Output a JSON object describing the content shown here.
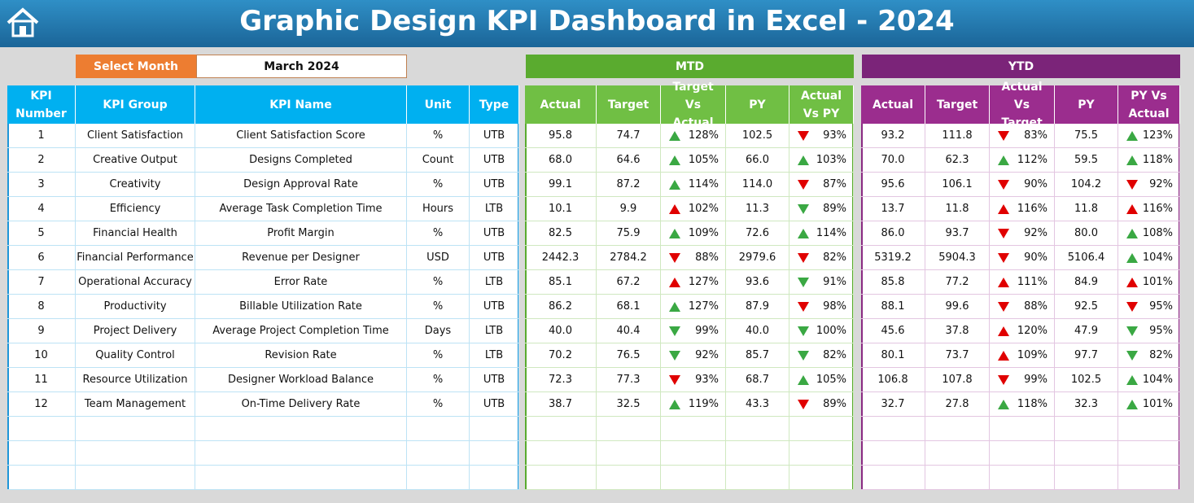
{
  "header": {
    "title": "Graphic Design KPI Dashboard in Excel - 2024"
  },
  "filter": {
    "label": "Select Month",
    "value": "March 2024"
  },
  "sections": {
    "mtd": "MTD",
    "ytd": "YTD"
  },
  "table": {
    "columns": [
      "KPI Number",
      "KPI Group",
      "KPI Name",
      "Unit",
      "Type",
      "Actual",
      "Target",
      "Target Vs Actual",
      "PY",
      "Actual Vs PY",
      "Actual",
      "Target",
      "Actual Vs Target",
      "PY",
      "PY Vs Actual"
    ],
    "rows": [
      [
        "1",
        "Client Satisfaction",
        "Client Satisfaction Score",
        "%",
        "UTB",
        "95.8",
        "74.7",
        "128%",
        "102.5",
        "93%",
        "93.2",
        "111.8",
        "83%",
        "75.5",
        "123%"
      ],
      [
        "2",
        "Creative Output",
        "Designs Completed",
        "Count",
        "UTB",
        "68.0",
        "64.6",
        "105%",
        "66.0",
        "103%",
        "70.0",
        "62.3",
        "112%",
        "59.5",
        "118%"
      ],
      [
        "3",
        "Creativity",
        "Design Approval Rate",
        "%",
        "UTB",
        "99.1",
        "87.2",
        "114%",
        "114.0",
        "87%",
        "95.6",
        "106.1",
        "90%",
        "104.2",
        "92%"
      ],
      [
        "4",
        "Efficiency",
        "Average Task Completion Time",
        "Hours",
        "LTB",
        "10.1",
        "9.9",
        "102%",
        "11.3",
        "89%",
        "13.7",
        "11.8",
        "116%",
        "11.8",
        "116%"
      ],
      [
        "5",
        "Financial Health",
        "Profit Margin",
        "%",
        "UTB",
        "82.5",
        "75.9",
        "109%",
        "72.6",
        "114%",
        "86.0",
        "93.7",
        "92%",
        "80.0",
        "108%"
      ],
      [
        "6",
        "Financial Performance",
        "Revenue per Designer",
        "USD",
        "UTB",
        "2442.3",
        "2784.2",
        "88%",
        "2979.6",
        "82%",
        "5319.2",
        "5904.3",
        "90%",
        "5106.4",
        "104%"
      ],
      [
        "7",
        "Operational Accuracy",
        "Error Rate",
        "%",
        "LTB",
        "85.1",
        "67.2",
        "127%",
        "93.6",
        "91%",
        "85.8",
        "77.2",
        "111%",
        "84.9",
        "101%"
      ],
      [
        "8",
        "Productivity",
        "Billable Utilization Rate",
        "%",
        "UTB",
        "86.2",
        "68.1",
        "127%",
        "87.9",
        "98%",
        "88.1",
        "99.6",
        "88%",
        "92.5",
        "95%"
      ],
      [
        "9",
        "Project Delivery",
        "Average Project Completion Time",
        "Days",
        "LTB",
        "40.0",
        "40.4",
        "99%",
        "40.0",
        "100%",
        "45.6",
        "37.8",
        "120%",
        "47.9",
        "95%"
      ],
      [
        "10",
        "Quality Control",
        "Revision Rate",
        "%",
        "LTB",
        "70.2",
        "76.5",
        "92%",
        "85.7",
        "82%",
        "80.1",
        "73.7",
        "109%",
        "97.7",
        "82%"
      ],
      [
        "11",
        "Resource Utilization",
        "Designer Workload Balance",
        "%",
        "UTB",
        "72.3",
        "77.3",
        "93%",
        "68.7",
        "105%",
        "106.8",
        "107.8",
        "99%",
        "102.5",
        "104%"
      ],
      [
        "12",
        "Team Management",
        "On-Time Delivery Rate",
        "%",
        "UTB",
        "38.7",
        "32.5",
        "119%",
        "43.3",
        "89%",
        "32.7",
        "27.8",
        "118%",
        "32.3",
        "101%"
      ]
    ],
    "arrows": [
      [
        "up",
        "down",
        "down",
        "up"
      ],
      [
        "up",
        "up",
        "up",
        "up"
      ],
      [
        "up",
        "down",
        "down",
        "down"
      ],
      [
        "up",
        "down",
        "up",
        "up"
      ],
      [
        "up",
        "up",
        "down",
        "up"
      ],
      [
        "down",
        "down",
        "down",
        "up"
      ],
      [
        "up",
        "down",
        "up",
        "up"
      ],
      [
        "up",
        "down",
        "down",
        "down"
      ],
      [
        "down",
        "down",
        "up",
        "down"
      ],
      [
        "down",
        "down",
        "up",
        "down"
      ],
      [
        "down",
        "up",
        "down",
        "up"
      ],
      [
        "up",
        "down",
        "up",
        "up"
      ]
    ],
    "arrow_colors": {
      "good": "#3aa843",
      "bad": "#e00000"
    }
  }
}
